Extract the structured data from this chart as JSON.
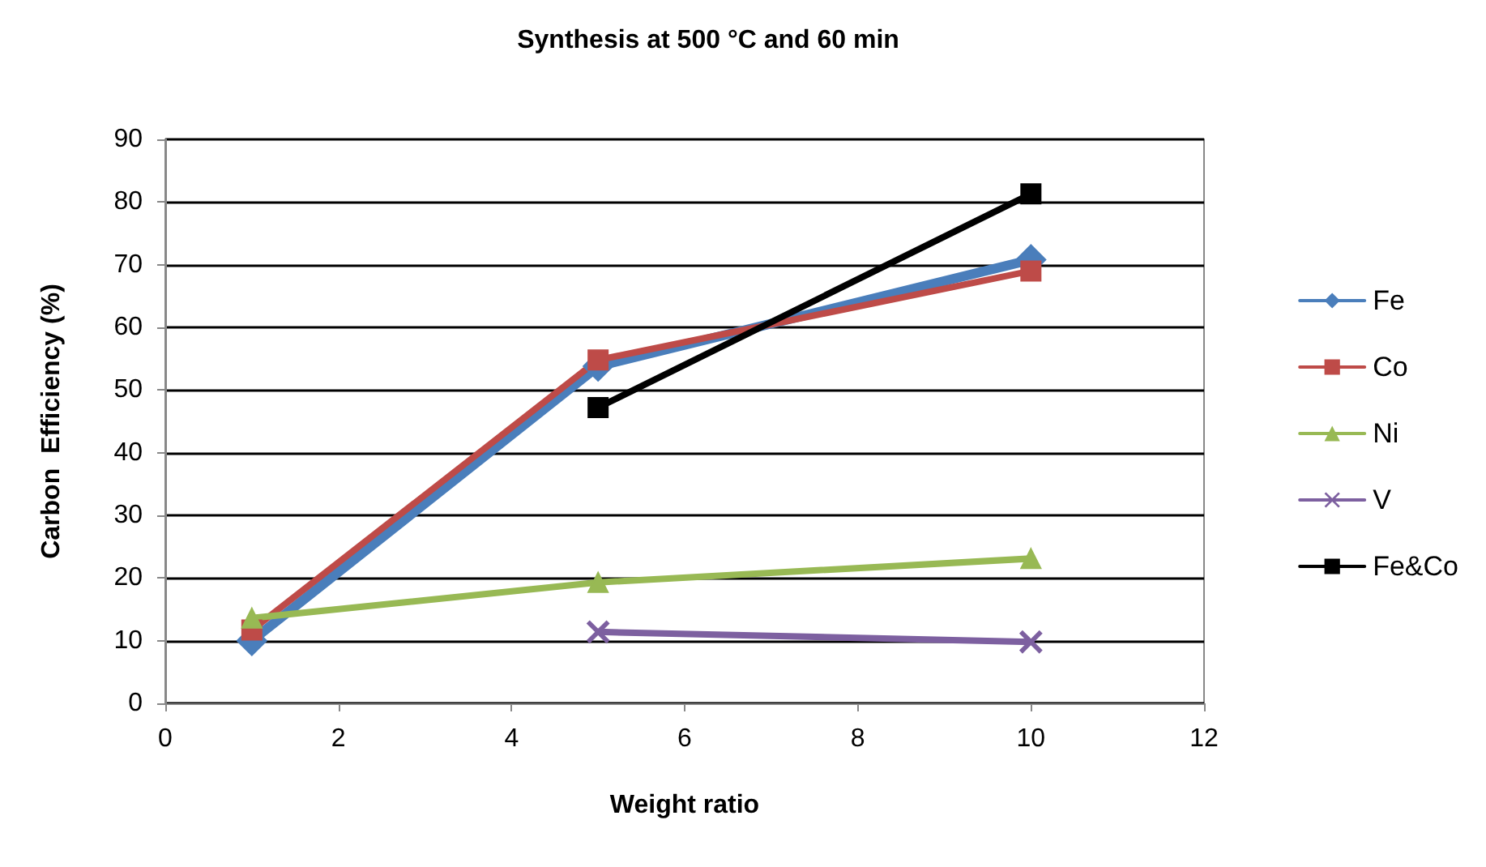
{
  "chart_data": {
    "type": "line",
    "title": "Synthesis at 500 °C and 60 min",
    "xlabel": "Weight ratio",
    "ylabel": "Carbon  Efficiency (%)",
    "series": [
      {
        "name": "Fe",
        "color": "#4a7ebb",
        "marker": "diamond",
        "x": [
          1,
          5,
          10
        ],
        "values": [
          10,
          53.8,
          70.8
        ]
      },
      {
        "name": "Co",
        "color": "#be4b48",
        "marker": "square",
        "x": [
          1,
          5,
          10
        ],
        "values": [
          11.7,
          54.8,
          69
        ]
      },
      {
        "name": "Ni",
        "color": "#98b954",
        "marker": "triangle",
        "x": [
          1,
          5,
          10
        ],
        "values": [
          13.6,
          19.3,
          23.1
        ]
      },
      {
        "name": "V",
        "color": "#7d60a0",
        "marker": "cross",
        "x": [
          5,
          10
        ],
        "values": [
          11.4,
          9.8
        ]
      },
      {
        "name": "Fe&Co",
        "color": "#000000",
        "marker": "square",
        "x": [
          5,
          10
        ],
        "values": [
          47.2,
          81.3
        ]
      }
    ],
    "xlim": [
      0,
      12
    ],
    "xticks": [
      0,
      2,
      4,
      6,
      8,
      10,
      12
    ],
    "ylim": [
      0,
      90
    ],
    "yticks": [
      0,
      10,
      20,
      30,
      40,
      50,
      60,
      70,
      80,
      90
    ],
    "grid": "y",
    "legend": "right",
    "line_style": "solid"
  }
}
